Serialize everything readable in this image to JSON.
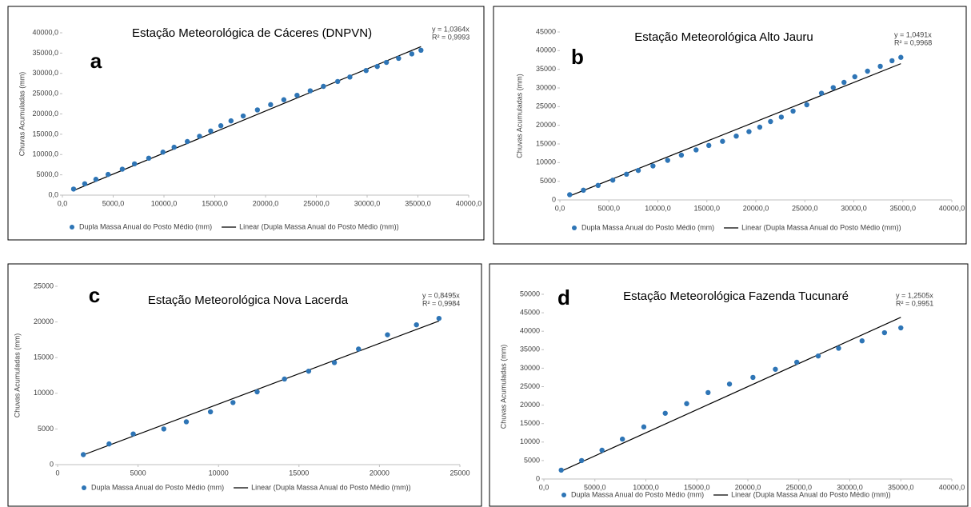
{
  "chart_data": [
    {
      "type": "scatter",
      "title": "Estação Meteorológica de Cáceres (DNPVN)",
      "annotation": "a",
      "y_label": "Chuvas Acumuladas (mm)",
      "xlim": [
        0,
        40000
      ],
      "xticks": [
        {
          "value": 0,
          "label": "0,0"
        },
        {
          "value": 5000,
          "label": "5000,0"
        },
        {
          "value": 10000,
          "label": "10000,0"
        },
        {
          "value": 15000,
          "label": "15000,0"
        },
        {
          "value": 20000,
          "label": "20000,0"
        },
        {
          "value": 25000,
          "label": "25000,0"
        },
        {
          "value": 30000,
          "label": "30000,0"
        },
        {
          "value": 35000,
          "label": "35000,0"
        },
        {
          "value": 40000,
          "label": "40000,0"
        }
      ],
      "ylim": [
        0,
        40000
      ],
      "yticks": [
        {
          "value": 0,
          "label": "0,0"
        },
        {
          "value": 5000,
          "label": "5000,0"
        },
        {
          "value": 10000,
          "label": "10000,0"
        },
        {
          "value": 15000,
          "label": "15000,0"
        },
        {
          "value": 20000,
          "label": "20000,0"
        },
        {
          "value": 25000,
          "label": "25000,0"
        },
        {
          "value": 30000,
          "label": "30000,0"
        },
        {
          "value": 35000,
          "label": "35000,0"
        },
        {
          "value": 40000,
          "label": "40000,0"
        }
      ],
      "series": [
        {
          "name": "Dupla Massa Anual do Posto Médio (mm)",
          "color": "#2e75b6",
          "x": [
            1100,
            2200,
            3300,
            4500,
            5900,
            7100,
            8500,
            9900,
            11000,
            12300,
            13500,
            14600,
            15600,
            16600,
            17800,
            19200,
            20500,
            21800,
            23100,
            24400,
            25700,
            27100,
            28300,
            29900,
            31000,
            31900,
            33100,
            34400,
            35300
          ],
          "values": [
            1500,
            2800,
            3900,
            5100,
            6400,
            7700,
            9100,
            10600,
            11800,
            13200,
            14500,
            15800,
            17100,
            18300,
            19500,
            21000,
            22300,
            23500,
            24600,
            25700,
            26800,
            28000,
            29100,
            30700,
            31700,
            32700,
            33700,
            34800,
            35700
          ]
        }
      ],
      "trendline": {
        "name": "Linear (Dupla Massa Anual do Posto Médio (mm))",
        "color": "#000000",
        "slope": 1.0364,
        "equation": "y = 1,0364x",
        "r2": "R² = 0,9993"
      }
    },
    {
      "type": "scatter",
      "title": "Estação Meteorológica Alto Jauru",
      "annotation": "b",
      "y_label": "Chuvas Acumuladas (mm)",
      "xlim": [
        0,
        40000
      ],
      "xticks": [
        {
          "value": 0,
          "label": "0,0"
        },
        {
          "value": 5000,
          "label": "5000,0"
        },
        {
          "value": 10000,
          "label": "10000,0"
        },
        {
          "value": 15000,
          "label": "15000,0"
        },
        {
          "value": 20000,
          "label": "20000,0"
        },
        {
          "value": 25000,
          "label": "25000,0"
        },
        {
          "value": 30000,
          "label": "30000,0"
        },
        {
          "value": 35000,
          "label": "35000,0"
        },
        {
          "value": 40000,
          "label": "40000,0"
        }
      ],
      "ylim": [
        0,
        45000
      ],
      "yticks": [
        0,
        5000,
        10000,
        15000,
        20000,
        25000,
        30000,
        35000,
        40000,
        45000
      ],
      "series": [
        {
          "name": "Dupla Massa Anual do Posto Médio (mm)",
          "color": "#2e75b6",
          "x": [
            1000,
            2400,
            3900,
            5400,
            6800,
            8000,
            9500,
            11000,
            12400,
            13900,
            15200,
            16600,
            18000,
            19300,
            20400,
            21500,
            22600,
            23800,
            25200,
            26700,
            27900,
            29000,
            30100,
            31400,
            32700,
            33900,
            34800
          ],
          "values": [
            1400,
            2600,
            3900,
            5300,
            6900,
            7900,
            9100,
            10600,
            12000,
            13400,
            14600,
            15700,
            17100,
            18300,
            19500,
            21000,
            22200,
            23800,
            25500,
            28600,
            30100,
            31500,
            33000,
            34500,
            35800,
            37300,
            38200
          ]
        }
      ],
      "trendline": {
        "name": "Linear (Dupla Massa Anual do Posto Médio (mm))",
        "color": "#000000",
        "slope": 1.0491,
        "equation": "y = 1,0491x",
        "r2": "R² = 0,9968"
      }
    },
    {
      "type": "scatter",
      "title": "Estação Meteorológica Nova Lacerda",
      "annotation": "c",
      "y_label": "Chuvas Acumuladas (mm)",
      "xlim": [
        0,
        25000
      ],
      "xticks": [
        0,
        5000,
        10000,
        15000,
        20000,
        25000
      ],
      "ylim": [
        0,
        25000
      ],
      "yticks": [
        0,
        5000,
        10000,
        15000,
        20000,
        25000
      ],
      "series": [
        {
          "name": "Dupla Massa Anual do Posto Médio (mm)",
          "color": "#2e75b6",
          "x": [
            1600,
            3200,
            4700,
            6600,
            8000,
            9500,
            10900,
            12400,
            14100,
            15600,
            17200,
            18700,
            20500,
            22300,
            23700
          ],
          "values": [
            1400,
            2900,
            4300,
            5000,
            6000,
            7400,
            8700,
            10200,
            12000,
            13100,
            14300,
            16200,
            18200,
            19600,
            20500
          ]
        }
      ],
      "trendline": {
        "name": "Linear (Dupla Massa Anual do Posto Médio (mm))",
        "color": "#000000",
        "slope": 0.8495,
        "equation": "y = 0,8495x",
        "r2": "R² = 0,9984"
      }
    },
    {
      "type": "scatter",
      "title": "Estação Meteorológica Fazenda Tucunaré",
      "annotation": "d",
      "y_label": "Chuvas Acumuladas (mm)",
      "xlim": [
        0,
        40000
      ],
      "xticks": [
        {
          "value": 0,
          "label": "0,0"
        },
        {
          "value": 5000,
          "label": "5000,0"
        },
        {
          "value": 10000,
          "label": "10000,0"
        },
        {
          "value": 15000,
          "label": "15000,0"
        },
        {
          "value": 20000,
          "label": "20000,0"
        },
        {
          "value": 25000,
          "label": "25000,0"
        },
        {
          "value": 30000,
          "label": "30000,0"
        },
        {
          "value": 35000,
          "label": "35000,0"
        },
        {
          "value": 40000,
          "label": "40000,0"
        }
      ],
      "ylim": [
        0,
        50000
      ],
      "yticks": [
        0,
        5000,
        10000,
        15000,
        20000,
        25000,
        30000,
        35000,
        40000,
        45000,
        50000
      ],
      "series": [
        {
          "name": "Dupla Massa Anual do Posto Médio (mm)",
          "color": "#2e75b6",
          "x": [
            1700,
            3700,
            5700,
            7700,
            9800,
            11900,
            14000,
            16100,
            18200,
            20500,
            22700,
            24800,
            26900,
            28900,
            31200,
            33400,
            35000
          ],
          "values": [
            2400,
            5000,
            7800,
            10800,
            14100,
            17800,
            20400,
            23400,
            25700,
            27500,
            29700,
            31600,
            33300,
            35400,
            37400,
            39600,
            40900
          ]
        }
      ],
      "trendline": {
        "name": "Linear (Dupla Massa Anual do Posto Médio (mm))",
        "color": "#000000",
        "slope": 1.2505,
        "equation": "y = 1,2505x",
        "r2": "R² = 0,9951"
      }
    }
  ]
}
